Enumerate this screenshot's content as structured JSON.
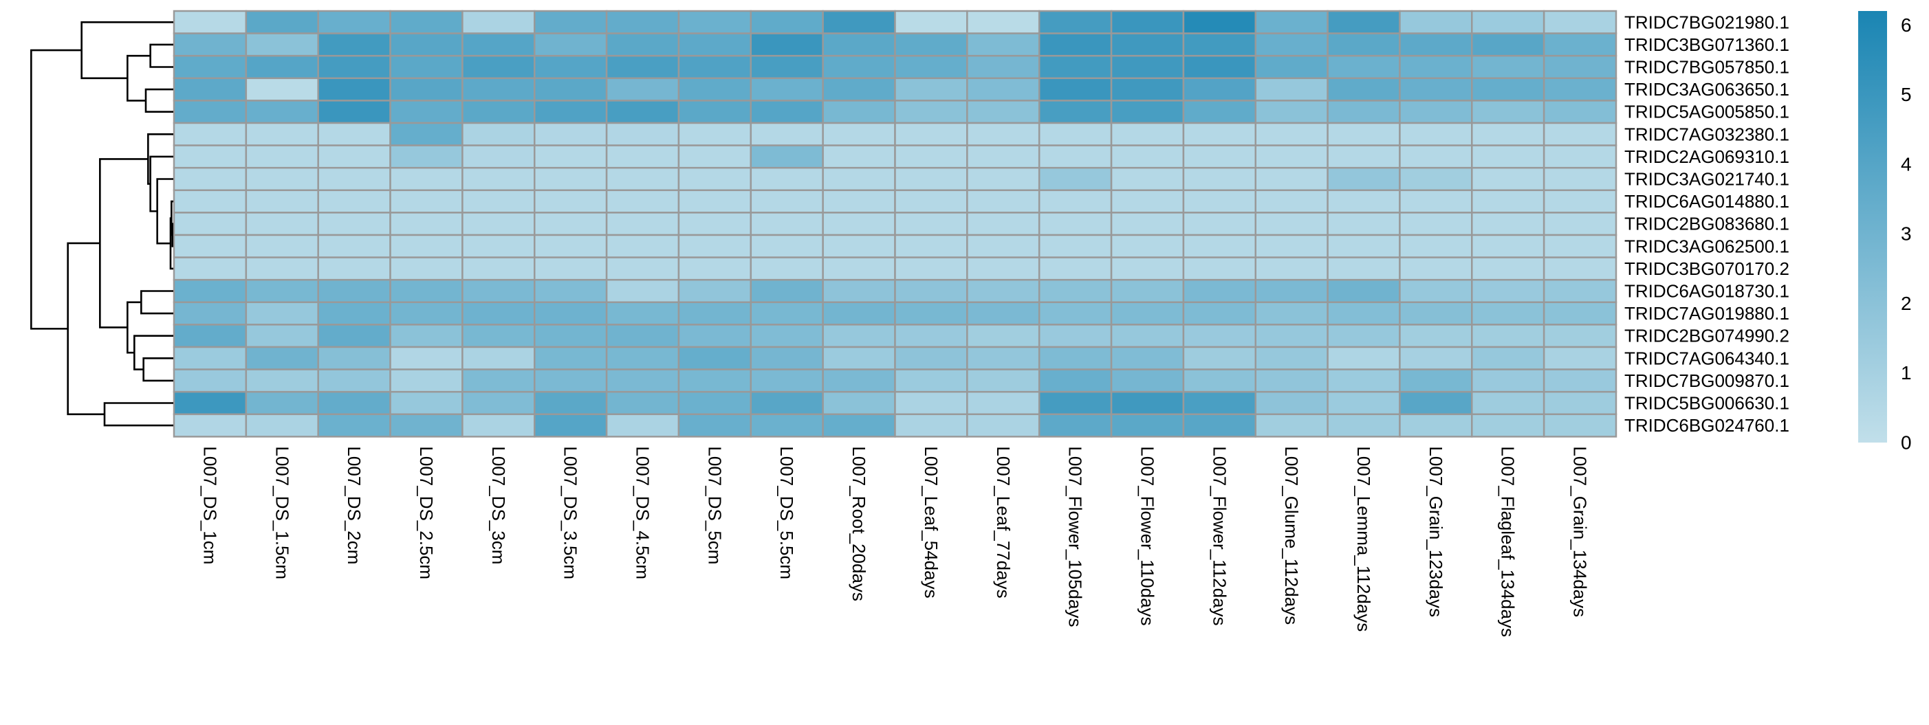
{
  "chart_data": {
    "type": "heatmap",
    "columns": [
      "L007_DS_1cm",
      "L007_DS_1.5cm",
      "L007_DS_2cm",
      "L007_DS_2.5cm",
      "L007_DS_3cm",
      "L007_DS_3.5cm",
      "L007_DS_4.5cm",
      "L007_DS_5cm",
      "L007_DS_5.5cm",
      "L007_Root_20days",
      "L007_Leaf_54days",
      "L007_Leaf_77days",
      "L007_Flower_105days",
      "L007_Flower_110days",
      "L007_Flower_112days",
      "L007_Glume_112days",
      "L007_Lemma_112days",
      "L007_Grain_123days",
      "L007_Flagleaf_134days",
      "L007_Grain_134days"
    ],
    "rows": [
      "TRIDC7BG021980.1",
      "TRIDC3BG071360.1",
      "TRIDC7BG057850.1",
      "TRIDC3AG063650.1",
      "TRIDC5AG005850.1",
      "TRIDC7AG032380.1",
      "TRIDC2AG069310.1",
      "TRIDC3AG021740.1",
      "TRIDC6AG014880.1",
      "TRIDC2BG083680.1",
      "TRIDC3AG062500.1",
      "TRIDC3BG070170.2",
      "TRIDC6AG018730.1",
      "TRIDC7AG019880.1",
      "TRIDC2BG074990.2",
      "TRIDC7AG064340.1",
      "TRIDC7BG009870.1",
      "TRIDC5BG006630.1",
      "TRIDC6BG024760.1"
    ],
    "values": [
      [
        0.4,
        3.8,
        3.3,
        3.6,
        0.8,
        3.5,
        3.5,
        3.2,
        3.6,
        4.8,
        0.3,
        0.3,
        4.6,
        5.0,
        5.8,
        3.2,
        4.6,
        1.6,
        1.4,
        0.9
      ],
      [
        3.0,
        2.0,
        4.7,
        3.9,
        4.0,
        3.0,
        3.8,
        3.7,
        5.0,
        3.8,
        3.6,
        2.5,
        5.0,
        4.8,
        4.7,
        3.3,
        3.8,
        3.7,
        3.9,
        3.2
      ],
      [
        3.6,
        4.0,
        4.6,
        3.8,
        4.4,
        4.0,
        4.4,
        4.2,
        4.5,
        3.6,
        3.4,
        2.8,
        4.7,
        4.8,
        5.0,
        3.6,
        3.2,
        3.2,
        2.9,
        3.0
      ],
      [
        3.7,
        0.3,
        5.0,
        3.9,
        3.7,
        3.8,
        2.8,
        3.6,
        3.2,
        3.6,
        2.0,
        2.4,
        5.0,
        4.8,
        4.1,
        1.6,
        3.6,
        3.3,
        3.4,
        3.2
      ],
      [
        3.5,
        3.3,
        5.0,
        3.5,
        3.8,
        4.2,
        4.5,
        3.8,
        4.0,
        2.7,
        2.0,
        2.0,
        4.5,
        4.5,
        3.6,
        2.0,
        2.6,
        2.4,
        2.0,
        2.3
      ],
      [
        0.5,
        0.5,
        0.5,
        3.4,
        0.8,
        0.6,
        0.6,
        0.5,
        0.5,
        0.5,
        0.5,
        0.5,
        0.5,
        0.5,
        0.5,
        0.5,
        0.5,
        0.5,
        0.5,
        0.5
      ],
      [
        0.5,
        0.5,
        0.5,
        1.6,
        0.6,
        0.5,
        0.5,
        0.5,
        2.5,
        0.5,
        0.5,
        0.5,
        0.5,
        0.5,
        0.5,
        0.5,
        0.5,
        0.5,
        0.5,
        0.5
      ],
      [
        0.5,
        0.5,
        0.5,
        0.5,
        0.5,
        0.5,
        0.5,
        0.5,
        0.5,
        0.5,
        0.5,
        0.5,
        1.6,
        0.5,
        0.5,
        0.5,
        1.7,
        1.2,
        0.5,
        0.5
      ],
      [
        0.5,
        0.5,
        0.5,
        0.5,
        0.5,
        0.5,
        0.5,
        0.5,
        0.5,
        0.5,
        0.5,
        0.5,
        0.5,
        0.5,
        0.5,
        0.5,
        0.5,
        0.5,
        0.5,
        0.5
      ],
      [
        0.5,
        0.5,
        0.5,
        0.5,
        0.5,
        0.5,
        0.5,
        0.5,
        0.5,
        0.5,
        0.5,
        0.5,
        0.5,
        0.5,
        0.5,
        0.5,
        0.5,
        0.5,
        0.5,
        0.5
      ],
      [
        0.5,
        0.5,
        0.5,
        0.5,
        0.5,
        0.5,
        0.5,
        0.5,
        0.5,
        0.5,
        0.5,
        0.5,
        0.5,
        0.5,
        0.5,
        0.5,
        0.5,
        0.5,
        0.5,
        0.5
      ],
      [
        0.5,
        0.5,
        0.5,
        0.5,
        0.5,
        0.5,
        0.5,
        0.5,
        0.5,
        0.5,
        0.5,
        0.5,
        0.5,
        0.5,
        0.5,
        0.5,
        0.5,
        0.5,
        0.5,
        0.5
      ],
      [
        3.2,
        2.7,
        3.0,
        2.9,
        2.6,
        2.4,
        0.8,
        1.8,
        3.0,
        1.9,
        1.9,
        1.8,
        2.0,
        2.0,
        2.6,
        2.6,
        3.0,
        1.6,
        1.5,
        1.6
      ],
      [
        2.8,
        1.6,
        3.2,
        2.9,
        3.1,
        3.1,
        2.7,
        2.9,
        2.7,
        2.9,
        2.7,
        2.6,
        2.3,
        2.5,
        2.5,
        2.0,
        2.3,
        2.2,
        2.0,
        2.0
      ],
      [
        3.5,
        1.6,
        3.5,
        2.0,
        2.7,
        2.9,
        3.0,
        2.6,
        2.4,
        1.6,
        1.5,
        1.2,
        1.5,
        1.6,
        1.5,
        1.6,
        1.6,
        1.2,
        1.2,
        1.2
      ],
      [
        1.4,
        3.0,
        2.2,
        0.6,
        0.8,
        2.7,
        2.7,
        3.4,
        2.8,
        1.4,
        1.9,
        1.7,
        2.5,
        2.4,
        1.3,
        1.6,
        0.7,
        1.0,
        1.6,
        0.9
      ],
      [
        1.5,
        1.3,
        1.7,
        0.9,
        2.5,
        2.6,
        2.6,
        2.7,
        2.6,
        2.6,
        1.4,
        1.3,
        3.3,
        2.8,
        2.0,
        1.8,
        1.4,
        2.7,
        1.5,
        1.5
      ],
      [
        4.9,
        2.9,
        3.5,
        1.6,
        2.4,
        3.8,
        2.9,
        3.2,
        3.9,
        2.0,
        0.8,
        0.8,
        4.6,
        4.8,
        4.4,
        1.9,
        1.4,
        3.9,
        1.3,
        1.3
      ],
      [
        0.6,
        0.8,
        3.2,
        3.0,
        0.8,
        4.0,
        0.8,
        3.3,
        3.2,
        3.4,
        0.8,
        0.8,
        3.7,
        3.8,
        3.9,
        1.2,
        1.3,
        1.2,
        1.2,
        1.2
      ]
    ],
    "legend": {
      "ticks": [
        0,
        1,
        2,
        3,
        4,
        5,
        6
      ],
      "min": 0,
      "max": 6.2,
      "colors": [
        "#c1dfea",
        "#1a85b3"
      ],
      "placement": "right"
    },
    "row_dendrogram": {
      "merges": [
        [
          -2,
          -3,
          0.5
        ],
        [
          -4,
          -5,
          0.6
        ],
        [
          1,
          2,
          1.0
        ],
        [
          -1,
          3,
          2.0
        ],
        [
          -10,
          -11,
          0.02
        ],
        [
          -9,
          5,
          0.04
        ],
        [
          -12,
          6,
          0.06
        ],
        [
          -8,
          7,
          0.35
        ],
        [
          -7,
          8,
          0.5
        ],
        [
          -6,
          9,
          0.55
        ],
        [
          -13,
          -14,
          0.7
        ],
        [
          -16,
          -17,
          0.65
        ],
        [
          -15,
          12,
          0.85
        ],
        [
          11,
          13,
          1.0
        ],
        [
          10,
          14,
          1.6
        ],
        [
          -18,
          -19,
          1.5
        ],
        [
          15,
          16,
          2.3
        ],
        [
          4,
          17,
          3.1
        ]
      ],
      "max_height": 3.3,
      "link_color": "#000000"
    },
    "cell_border_color": "#999999"
  }
}
